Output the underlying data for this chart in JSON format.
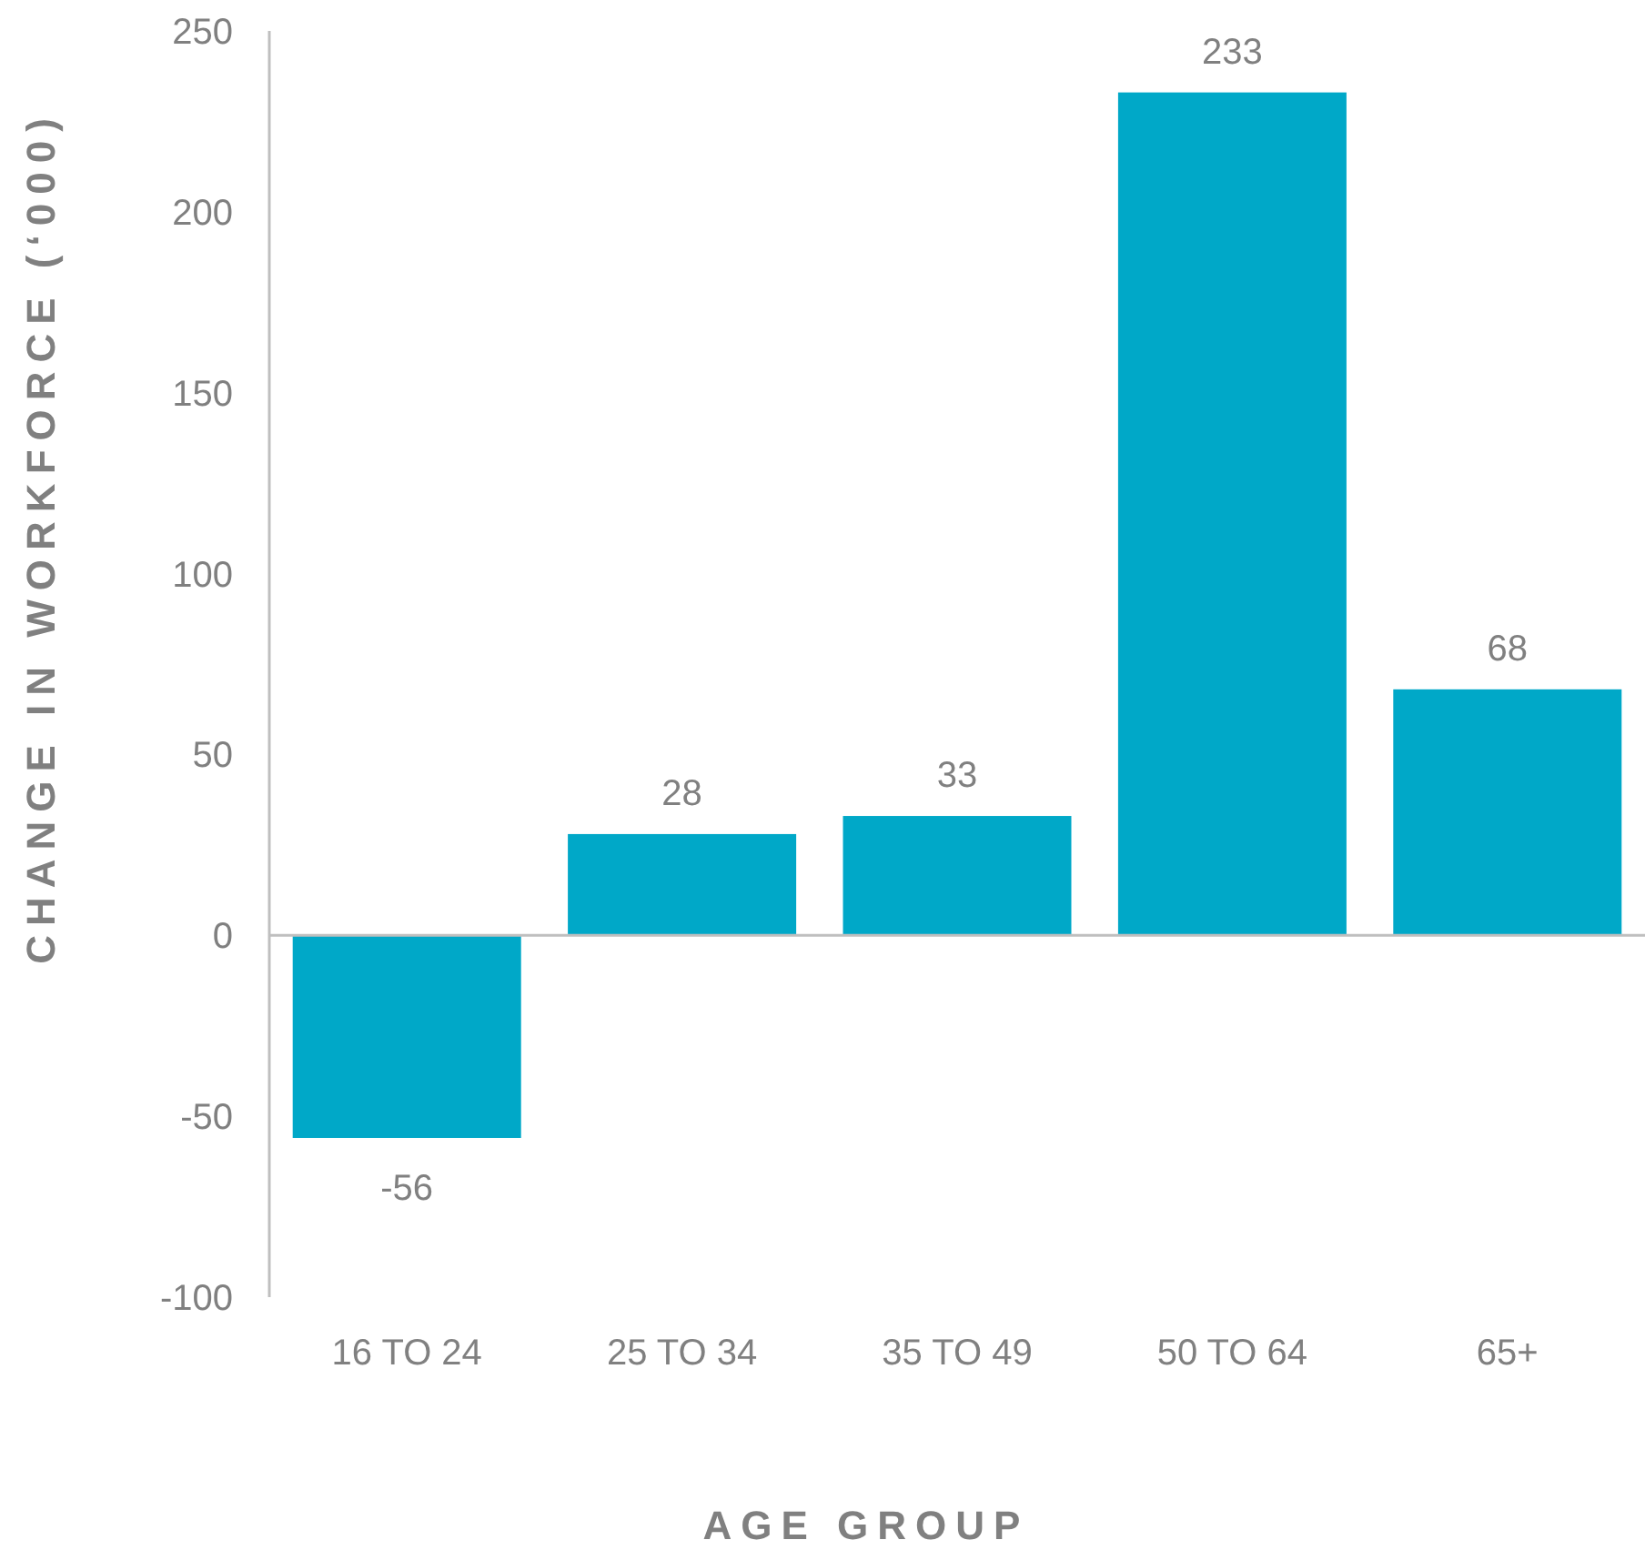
{
  "chart_data": {
    "type": "bar",
    "xlabel": "AGE GROUP",
    "ylabel": "CHANGE IN WORKFORCE (‘000)",
    "categories": [
      "16 TO 24",
      "25 TO 34",
      "35 TO 49",
      "50 TO 64",
      "65+"
    ],
    "values": [
      -56,
      28,
      33,
      233,
      68
    ],
    "color": "#00a8c8",
    "ylim": [
      -100,
      250
    ],
    "yticks": [
      -100,
      -50,
      0,
      50,
      100,
      150,
      200,
      250
    ],
    "data_labels": true
  }
}
